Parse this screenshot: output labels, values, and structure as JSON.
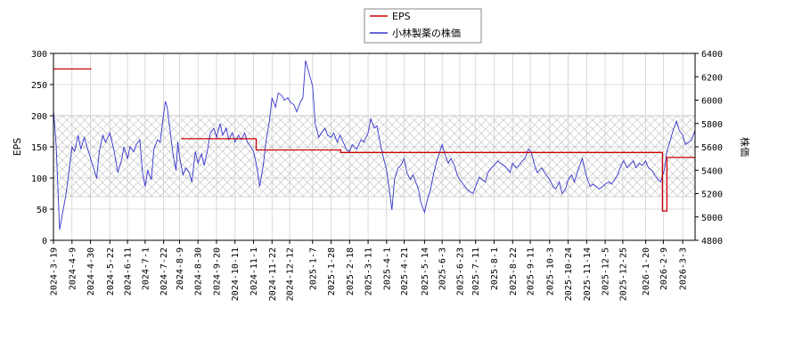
{
  "chart_data": {
    "type": "line",
    "grid": true,
    "band": {
      "y_left": [
        70,
        200
      ],
      "hatched": true
    },
    "legend": {
      "placement": "top-center",
      "entries": [
        "EPS",
        "小林製薬の株価"
      ]
    },
    "axes": {
      "left": {
        "label": "EPS",
        "ylim": [
          0,
          300
        ],
        "ticks": [
          0,
          50,
          100,
          150,
          200,
          250,
          300
        ]
      },
      "right": {
        "label": "株価",
        "ylim": [
          4800,
          6400
        ],
        "ticks": [
          4800,
          5000,
          5200,
          5400,
          5600,
          5800,
          6000,
          6200,
          6400
        ]
      },
      "x": {
        "xlim": [
          "2024-03-19",
          "2026-03-17"
        ],
        "tick_labels": [
          "2024-3-19",
          "2024-4-9",
          "2024-4-30",
          "2024-5-22",
          "2024-6-11",
          "2024-7-1",
          "2024-7-22",
          "2024-8-9",
          "2024-8-30",
          "2024-9-20",
          "2024-10-11",
          "2024-11-1",
          "2024-11-22",
          "2024-12-12",
          "2025-1-7",
          "2025-1-28",
          "2025-2-18",
          "2025-3-11",
          "2025-4-1",
          "2025-4-21",
          "2025-5-14",
          "2025-6-3",
          "2025-6-23",
          "2025-7-11",
          "2025-8-1",
          "2025-8-22",
          "2025-9-11",
          "2025-10-3",
          "2025-10-24",
          "2025-11-14",
          "2025-12-5",
          "2025-12-25",
          "2026-1-20",
          "2026-2-9",
          "2026-3-3"
        ],
        "tick_dates": [
          "2024-03-19",
          "2024-04-09",
          "2024-04-30",
          "2024-05-22",
          "2024-06-11",
          "2024-07-01",
          "2024-07-22",
          "2024-08-09",
          "2024-08-30",
          "2024-09-20",
          "2024-10-11",
          "2024-11-01",
          "2024-11-22",
          "2024-12-12",
          "2025-01-07",
          "2025-01-28",
          "2025-02-18",
          "2025-03-11",
          "2025-04-01",
          "2025-04-21",
          "2025-05-14",
          "2025-06-03",
          "2025-06-23",
          "2025-07-11",
          "2025-08-01",
          "2025-08-22",
          "2025-09-11",
          "2025-10-03",
          "2025-10-24",
          "2025-11-14",
          "2025-12-05",
          "2025-12-25",
          "2026-01-20",
          "2026-02-09",
          "2026-03-03"
        ]
      }
    },
    "series": [
      {
        "name": "EPS",
        "axis": "left",
        "color": "#cc0000",
        "step": true,
        "segments": [
          {
            "from": "2024-03-19",
            "to": "2024-05-01",
            "value": 275
          },
          {
            "from": "2024-08-11",
            "to": "2024-11-04",
            "value": 163
          },
          {
            "from": "2024-11-04",
            "to": "2025-02-08",
            "value": 145
          },
          {
            "from": "2025-02-08",
            "to": "2026-02-08",
            "value": 141
          },
          {
            "from": "2026-02-08",
            "to": "2026-02-13",
            "value": 47
          },
          {
            "from": "2026-02-13",
            "to": "2026-03-17",
            "value": 133
          }
        ]
      },
      {
        "name": "小林製薬の株価",
        "axis": "right",
        "color": "#3333cc",
        "points": [
          [
            "2024-03-19",
            5920
          ],
          [
            "2024-03-22",
            5620
          ],
          [
            "2024-03-26",
            4890
          ],
          [
            "2024-03-29",
            5020
          ],
          [
            "2024-04-02",
            5180
          ],
          [
            "2024-04-05",
            5350
          ],
          [
            "2024-04-09",
            5600
          ],
          [
            "2024-04-12",
            5560
          ],
          [
            "2024-04-16",
            5700
          ],
          [
            "2024-04-19",
            5580
          ],
          [
            "2024-04-23",
            5680
          ],
          [
            "2024-04-26",
            5600
          ],
          [
            "2024-05-01",
            5480
          ],
          [
            "2024-05-07",
            5330
          ],
          [
            "2024-05-10",
            5560
          ],
          [
            "2024-05-14",
            5700
          ],
          [
            "2024-05-17",
            5640
          ],
          [
            "2024-05-22",
            5720
          ],
          [
            "2024-05-27",
            5560
          ],
          [
            "2024-05-31",
            5380
          ],
          [
            "2024-06-04",
            5480
          ],
          [
            "2024-06-07",
            5600
          ],
          [
            "2024-06-11",
            5500
          ],
          [
            "2024-06-14",
            5600
          ],
          [
            "2024-06-18",
            5560
          ],
          [
            "2024-06-21",
            5620
          ],
          [
            "2024-06-25",
            5660
          ],
          [
            "2024-06-28",
            5380
          ],
          [
            "2024-07-01",
            5260
          ],
          [
            "2024-07-04",
            5400
          ],
          [
            "2024-07-08",
            5320
          ],
          [
            "2024-07-11",
            5580
          ],
          [
            "2024-07-15",
            5660
          ],
          [
            "2024-07-18",
            5640
          ],
          [
            "2024-07-22",
            5880
          ],
          [
            "2024-07-24",
            5990
          ],
          [
            "2024-07-26",
            5940
          ],
          [
            "2024-07-30",
            5700
          ],
          [
            "2024-08-02",
            5520
          ],
          [
            "2024-08-05",
            5400
          ],
          [
            "2024-08-07",
            5640
          ],
          [
            "2024-08-09",
            5520
          ],
          [
            "2024-08-13",
            5360
          ],
          [
            "2024-08-16",
            5420
          ],
          [
            "2024-08-20",
            5380
          ],
          [
            "2024-08-23",
            5300
          ],
          [
            "2024-08-27",
            5560
          ],
          [
            "2024-08-30",
            5460
          ],
          [
            "2024-09-03",
            5540
          ],
          [
            "2024-09-06",
            5440
          ],
          [
            "2024-09-10",
            5580
          ],
          [
            "2024-09-13",
            5720
          ],
          [
            "2024-09-17",
            5760
          ],
          [
            "2024-09-20",
            5680
          ],
          [
            "2024-09-24",
            5800
          ],
          [
            "2024-09-27",
            5700
          ],
          [
            "2024-10-01",
            5760
          ],
          [
            "2024-10-04",
            5660
          ],
          [
            "2024-10-08",
            5720
          ],
          [
            "2024-10-11",
            5640
          ],
          [
            "2024-10-15",
            5700
          ],
          [
            "2024-10-18",
            5660
          ],
          [
            "2024-10-22",
            5720
          ],
          [
            "2024-10-25",
            5640
          ],
          [
            "2024-10-29",
            5600
          ],
          [
            "2024-11-01",
            5560
          ],
          [
            "2024-11-05",
            5420
          ],
          [
            "2024-11-08",
            5260
          ],
          [
            "2024-11-12",
            5440
          ],
          [
            "2024-11-15",
            5640
          ],
          [
            "2024-11-19",
            5820
          ],
          [
            "2024-11-22",
            6020
          ],
          [
            "2024-11-26",
            5940
          ],
          [
            "2024-11-29",
            6060
          ],
          [
            "2024-12-03",
            6040
          ],
          [
            "2024-12-06",
            6000
          ],
          [
            "2024-12-10",
            6020
          ],
          [
            "2024-12-13",
            5980
          ],
          [
            "2024-12-17",
            5960
          ],
          [
            "2024-12-20",
            5900
          ],
          [
            "2024-12-24",
            5980
          ],
          [
            "2024-12-27",
            6020
          ],
          [
            "2024-12-30",
            6340
          ],
          [
            "2025-01-07",
            6120
          ],
          [
            "2025-01-10",
            5800
          ],
          [
            "2025-01-14",
            5680
          ],
          [
            "2025-01-17",
            5720
          ],
          [
            "2025-01-21",
            5760
          ],
          [
            "2025-01-24",
            5700
          ],
          [
            "2025-01-28",
            5680
          ],
          [
            "2025-01-31",
            5720
          ],
          [
            "2025-02-04",
            5640
          ],
          [
            "2025-02-07",
            5700
          ],
          [
            "2025-02-12",
            5620
          ],
          [
            "2025-02-14",
            5580
          ],
          [
            "2025-02-18",
            5560
          ],
          [
            "2025-02-21",
            5620
          ],
          [
            "2025-02-26",
            5580
          ],
          [
            "2025-03-03",
            5660
          ],
          [
            "2025-03-06",
            5640
          ],
          [
            "2025-03-11",
            5720
          ],
          [
            "2025-03-14",
            5840
          ],
          [
            "2025-03-18",
            5760
          ],
          [
            "2025-03-21",
            5780
          ],
          [
            "2025-03-25",
            5620
          ],
          [
            "2025-03-28",
            5520
          ],
          [
            "2025-04-01",
            5400
          ],
          [
            "2025-04-04",
            5240
          ],
          [
            "2025-04-07",
            5060
          ],
          [
            "2025-04-10",
            5320
          ],
          [
            "2025-04-14",
            5420
          ],
          [
            "2025-04-17",
            5440
          ],
          [
            "2025-04-21",
            5500
          ],
          [
            "2025-04-24",
            5380
          ],
          [
            "2025-04-28",
            5320
          ],
          [
            "2025-05-01",
            5360
          ],
          [
            "2025-05-07",
            5240
          ],
          [
            "2025-05-10",
            5120
          ],
          [
            "2025-05-14",
            5040
          ],
          [
            "2025-05-17",
            5140
          ],
          [
            "2025-05-21",
            5240
          ],
          [
            "2025-05-24",
            5360
          ],
          [
            "2025-05-28",
            5480
          ],
          [
            "2025-06-03",
            5620
          ],
          [
            "2025-06-06",
            5540
          ],
          [
            "2025-06-10",
            5460
          ],
          [
            "2025-06-13",
            5500
          ],
          [
            "2025-06-17",
            5440
          ],
          [
            "2025-06-20",
            5360
          ],
          [
            "2025-06-23",
            5320
          ],
          [
            "2025-06-27",
            5280
          ],
          [
            "2025-07-01",
            5240
          ],
          [
            "2025-07-04",
            5220
          ],
          [
            "2025-07-08",
            5200
          ],
          [
            "2025-07-11",
            5260
          ],
          [
            "2025-07-15",
            5340
          ],
          [
            "2025-07-18",
            5320
          ],
          [
            "2025-07-22",
            5300
          ],
          [
            "2025-07-25",
            5380
          ],
          [
            "2025-07-29",
            5420
          ],
          [
            "2025-08-01",
            5440
          ],
          [
            "2025-08-05",
            5480
          ],
          [
            "2025-08-08",
            5460
          ],
          [
            "2025-08-12",
            5440
          ],
          [
            "2025-08-15",
            5420
          ],
          [
            "2025-08-19",
            5380
          ],
          [
            "2025-08-22",
            5460
          ],
          [
            "2025-08-26",
            5420
          ],
          [
            "2025-08-29",
            5440
          ],
          [
            "2025-09-02",
            5480
          ],
          [
            "2025-09-05",
            5500
          ],
          [
            "2025-09-09",
            5580
          ],
          [
            "2025-09-12",
            5560
          ],
          [
            "2025-09-16",
            5440
          ],
          [
            "2025-09-19",
            5380
          ],
          [
            "2025-09-24",
            5420
          ],
          [
            "2025-09-29",
            5360
          ],
          [
            "2025-10-03",
            5320
          ],
          [
            "2025-10-07",
            5260
          ],
          [
            "2025-10-10",
            5240
          ],
          [
            "2025-10-14",
            5300
          ],
          [
            "2025-10-17",
            5200
          ],
          [
            "2025-10-21",
            5240
          ],
          [
            "2025-10-24",
            5320
          ],
          [
            "2025-10-28",
            5360
          ],
          [
            "2025-10-31",
            5300
          ],
          [
            "2025-11-05",
            5420
          ],
          [
            "2025-11-09",
            5500
          ],
          [
            "2025-11-14",
            5340
          ],
          [
            "2025-11-18",
            5260
          ],
          [
            "2025-11-21",
            5280
          ],
          [
            "2025-11-25",
            5260
          ],
          [
            "2025-11-28",
            5240
          ],
          [
            "2025-12-02",
            5260
          ],
          [
            "2025-12-05",
            5280
          ],
          [
            "2025-12-09",
            5300
          ],
          [
            "2025-12-12",
            5280
          ],
          [
            "2025-12-16",
            5320
          ],
          [
            "2025-12-19",
            5360
          ],
          [
            "2025-12-23",
            5440
          ],
          [
            "2025-12-26",
            5480
          ],
          [
            "2025-12-30",
            5420
          ],
          [
            "2026-01-06",
            5480
          ],
          [
            "2026-01-09",
            5420
          ],
          [
            "2026-01-13",
            5460
          ],
          [
            "2026-01-16",
            5440
          ],
          [
            "2026-01-20",
            5480
          ],
          [
            "2026-01-23",
            5420
          ],
          [
            "2026-01-27",
            5400
          ],
          [
            "2026-01-30",
            5360
          ],
          [
            "2026-02-03",
            5320
          ],
          [
            "2026-02-06",
            5300
          ],
          [
            "2026-02-10",
            5400
          ],
          [
            "2026-02-13",
            5560
          ],
          [
            "2026-02-17",
            5660
          ],
          [
            "2026-02-20",
            5740
          ],
          [
            "2026-02-24",
            5820
          ],
          [
            "2026-02-27",
            5740
          ],
          [
            "2026-03-03",
            5700
          ],
          [
            "2026-03-06",
            5620
          ],
          [
            "2026-03-10",
            5640
          ],
          [
            "2026-03-13",
            5660
          ],
          [
            "2026-03-17",
            5740
          ]
        ]
      }
    ]
  }
}
